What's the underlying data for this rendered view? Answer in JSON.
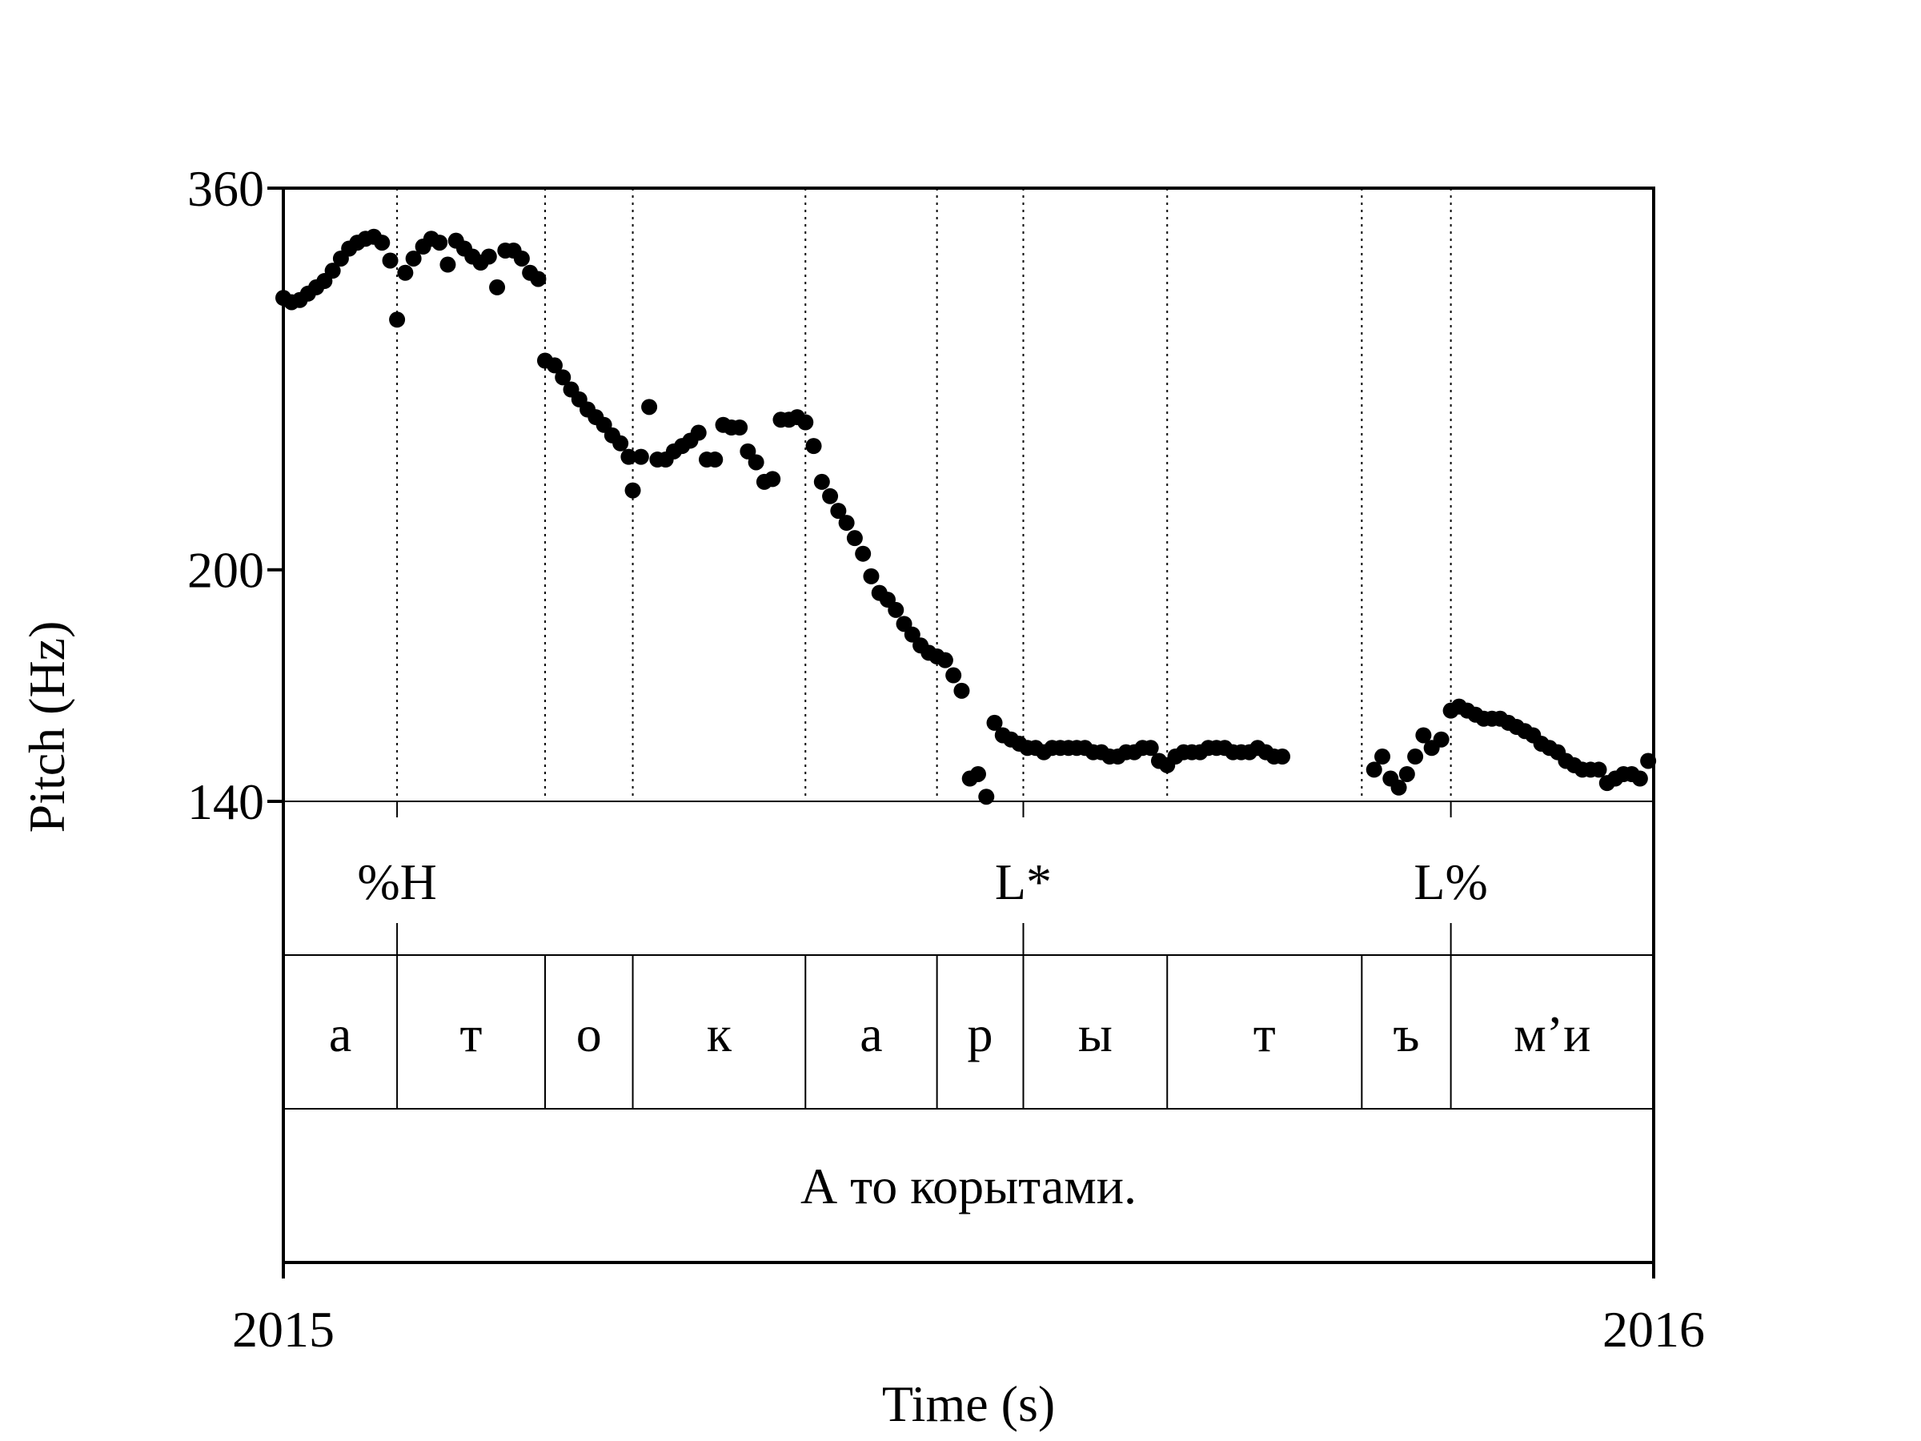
{
  "chart_data": {
    "type": "scatter",
    "xlabel": "Time (s)",
    "ylabel": "Pitch (Hz)",
    "xlim": [
      2015,
      2016
    ],
    "ylim": [
      140,
      360
    ],
    "y_scale": "log",
    "x_ticks": [
      "2015",
      "2016"
    ],
    "y_ticks": [
      {
        "value": 360,
        "label": "360"
      },
      {
        "value": 200,
        "label": "200"
      },
      {
        "value": 140,
        "label": "140"
      }
    ],
    "segment_boundaries": [
      2015.083,
      2015.191,
      2015.255,
      2015.381,
      2015.477,
      2015.54,
      2015.645,
      2015.787,
      2015.852
    ],
    "tone_boundaries": [
      2015.083,
      2015.54,
      2015.852
    ],
    "tones": [
      {
        "label": "%H",
        "time": 2015.083
      },
      {
        "label": "L*",
        "time": 2015.54
      },
      {
        "label": "L%",
        "time": 2015.852
      }
    ],
    "segments": [
      {
        "label": "а",
        "start": 2015.0,
        "end": 2015.083
      },
      {
        "label": "т",
        "start": 2015.083,
        "end": 2015.191
      },
      {
        "label": "о",
        "start": 2015.191,
        "end": 2015.255
      },
      {
        "label": "к",
        "start": 2015.255,
        "end": 2015.381
      },
      {
        "label": "а",
        "start": 2015.381,
        "end": 2015.477
      },
      {
        "label": "р",
        "start": 2015.477,
        "end": 2015.54
      },
      {
        "label": "ы",
        "start": 2015.54,
        "end": 2015.645
      },
      {
        "label": "т",
        "start": 2015.645,
        "end": 2015.787
      },
      {
        "label": "ъ",
        "start": 2015.787,
        "end": 2015.852
      },
      {
        "label": "м’и",
        "start": 2015.852,
        "end": 2016.0
      }
    ],
    "sentence": "А то корытами.",
    "grid": false,
    "series": [
      {
        "color": "#000000",
        "points": [
          [
            2015.0,
            304
          ],
          [
            2015.006,
            302
          ],
          [
            2015.012,
            303
          ],
          [
            2015.018,
            306
          ],
          [
            2015.024,
            309
          ],
          [
            2015.03,
            312
          ],
          [
            2015.036,
            317
          ],
          [
            2015.042,
            323
          ],
          [
            2015.048,
            328
          ],
          [
            2015.054,
            331
          ],
          [
            2015.06,
            333
          ],
          [
            2015.066,
            334
          ],
          [
            2015.072,
            331
          ],
          [
            2015.078,
            322
          ],
          [
            2015.083,
            294
          ],
          [
            2015.089,
            316
          ],
          [
            2015.095,
            323
          ],
          [
            2015.102,
            329
          ],
          [
            2015.108,
            333
          ],
          [
            2015.114,
            331
          ],
          [
            2015.12,
            320
          ],
          [
            2015.126,
            332
          ],
          [
            2015.132,
            328
          ],
          [
            2015.138,
            324
          ],
          [
            2015.144,
            321
          ],
          [
            2015.15,
            324
          ],
          [
            2015.156,
            309
          ],
          [
            2015.162,
            327
          ],
          [
            2015.168,
            327
          ],
          [
            2015.174,
            323
          ],
          [
            2015.18,
            316
          ],
          [
            2015.186,
            313
          ],
          [
            2015.191,
            276
          ],
          [
            2015.198,
            274
          ],
          [
            2015.204,
            269
          ],
          [
            2015.21,
            264
          ],
          [
            2015.216,
            260
          ],
          [
            2015.222,
            256
          ],
          [
            2015.228,
            253
          ],
          [
            2015.234,
            250
          ],
          [
            2015.24,
            246
          ],
          [
            2015.246,
            243
          ],
          [
            2015.252,
            238
          ],
          [
            2015.255,
            226
          ],
          [
            2015.261,
            238
          ],
          [
            2015.267,
            257
          ],
          [
            2015.273,
            237
          ],
          [
            2015.279,
            237
          ],
          [
            2015.285,
            240
          ],
          [
            2015.291,
            242
          ],
          [
            2015.297,
            244
          ],
          [
            2015.303,
            247
          ],
          [
            2015.309,
            237
          ],
          [
            2015.315,
            237
          ],
          [
            2015.321,
            250
          ],
          [
            2015.327,
            249
          ],
          [
            2015.333,
            249
          ],
          [
            2015.339,
            240
          ],
          [
            2015.345,
            236
          ],
          [
            2015.351,
            229
          ],
          [
            2015.357,
            230
          ],
          [
            2015.363,
            252
          ],
          [
            2015.369,
            252
          ],
          [
            2015.375,
            253
          ],
          [
            2015.381,
            251
          ],
          [
            2015.387,
            242
          ],
          [
            2015.393,
            229
          ],
          [
            2015.399,
            224
          ],
          [
            2015.405,
            219
          ],
          [
            2015.411,
            215
          ],
          [
            2015.417,
            210
          ],
          [
            2015.423,
            205
          ],
          [
            2015.429,
            198
          ],
          [
            2015.435,
            193
          ],
          [
            2015.441,
            191
          ],
          [
            2015.447,
            188
          ],
          [
            2015.453,
            184
          ],
          [
            2015.459,
            181
          ],
          [
            2015.465,
            178
          ],
          [
            2015.471,
            176
          ],
          [
            2015.477,
            175
          ],
          [
            2015.483,
            174
          ],
          [
            2015.489,
            170
          ],
          [
            2015.495,
            166
          ],
          [
            2015.501,
            145
          ],
          [
            2015.507,
            146
          ],
          [
            2015.513,
            141
          ],
          [
            2015.519,
            158
          ],
          [
            2015.525,
            155
          ],
          [
            2015.531,
            154
          ],
          [
            2015.537,
            153
          ],
          [
            2015.543,
            152
          ],
          [
            2015.549,
            152
          ],
          [
            2015.555,
            151
          ],
          [
            2015.561,
            152
          ],
          [
            2015.567,
            152
          ],
          [
            2015.573,
            152
          ],
          [
            2015.579,
            152
          ],
          [
            2015.585,
            152
          ],
          [
            2015.591,
            151
          ],
          [
            2015.597,
            151
          ],
          [
            2015.603,
            150
          ],
          [
            2015.609,
            150
          ],
          [
            2015.615,
            151
          ],
          [
            2015.621,
            151
          ],
          [
            2015.627,
            152
          ],
          [
            2015.633,
            152
          ],
          [
            2015.639,
            149
          ],
          [
            2015.645,
            148
          ],
          [
            2015.651,
            150
          ],
          [
            2015.657,
            151
          ],
          [
            2015.663,
            151
          ],
          [
            2015.669,
            151
          ],
          [
            2015.675,
            152
          ],
          [
            2015.681,
            152
          ],
          [
            2015.687,
            152
          ],
          [
            2015.693,
            151
          ],
          [
            2015.699,
            151
          ],
          [
            2015.705,
            151
          ],
          [
            2015.711,
            152
          ],
          [
            2015.717,
            151
          ],
          [
            2015.723,
            150
          ],
          [
            2015.729,
            150
          ],
          [
            2015.796,
            147
          ],
          [
            2015.802,
            150
          ],
          [
            2015.808,
            145
          ],
          [
            2015.814,
            143
          ],
          [
            2015.82,
            146
          ],
          [
            2015.826,
            150
          ],
          [
            2015.832,
            155
          ],
          [
            2015.838,
            152
          ],
          [
            2015.845,
            154
          ],
          [
            2015.852,
            161
          ],
          [
            2015.858,
            162
          ],
          [
            2015.864,
            161
          ],
          [
            2015.87,
            160
          ],
          [
            2015.876,
            159
          ],
          [
            2015.882,
            159
          ],
          [
            2015.888,
            159
          ],
          [
            2015.894,
            158
          ],
          [
            2015.9,
            157
          ],
          [
            2015.906,
            156
          ],
          [
            2015.912,
            155
          ],
          [
            2015.918,
            153
          ],
          [
            2015.924,
            152
          ],
          [
            2015.93,
            151
          ],
          [
            2015.936,
            149
          ],
          [
            2015.942,
            148
          ],
          [
            2015.948,
            147
          ],
          [
            2015.954,
            147
          ],
          [
            2015.96,
            147
          ],
          [
            2015.966,
            144
          ],
          [
            2015.972,
            145
          ],
          [
            2015.978,
            146
          ],
          [
            2015.984,
            146
          ],
          [
            2015.99,
            145
          ],
          [
            2015.996,
            149
          ]
        ]
      }
    ]
  }
}
